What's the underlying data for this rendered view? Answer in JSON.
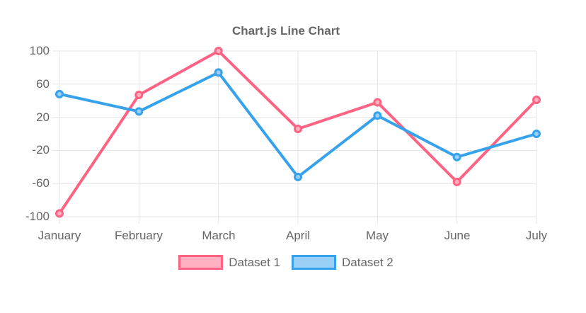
{
  "title": "Chart.js Line Chart",
  "background_color": "#ffffff",
  "chart_data": {
    "type": "line",
    "title": "Chart.js Line Chart",
    "categories": [
      "January",
      "February",
      "March",
      "April",
      "May",
      "June",
      "July"
    ],
    "series": [
      {
        "name": "Dataset 1",
        "values": [
          -96,
          47,
          100,
          6,
          38,
          -58,
          41
        ],
        "border_color": "#ff6384",
        "fill_color": "#ffb1c1"
      },
      {
        "name": "Dataset 2",
        "values": [
          48,
          27,
          74,
          -52,
          22,
          -28,
          0
        ],
        "border_color": "#36a2eb",
        "fill_color": "#9ad0f5"
      }
    ],
    "ylim": [
      -100,
      100
    ],
    "y_ticks": [
      100,
      60,
      20,
      -20,
      -60,
      -100
    ],
    "grid": true,
    "grid_color": "#e6e6e6",
    "tick_color": "#666666",
    "legend_position": "bottom",
    "line_width": 4,
    "point_radius": 4.5
  }
}
